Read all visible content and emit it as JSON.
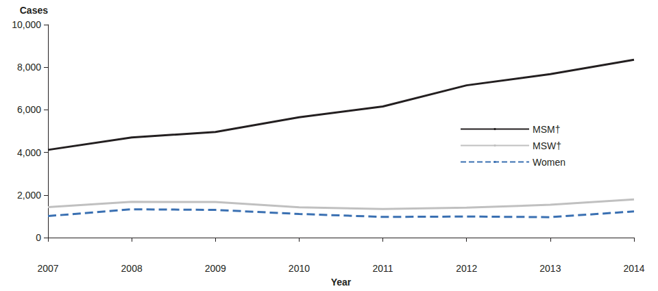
{
  "chart_data": {
    "type": "line",
    "x_label": "Year",
    "y_label": "Cases",
    "categories": [
      "2007",
      "2008",
      "2009",
      "2010",
      "2011",
      "2012",
      "2013",
      "2014"
    ],
    "series": [
      {
        "name": "MSM†",
        "color": "#231f20",
        "line_style": "solid",
        "marker": "none",
        "values": [
          4120,
          4700,
          4960,
          5650,
          6160,
          7150,
          7680,
          8350
        ]
      },
      {
        "name": "MSW†",
        "color": "#c0c0c0",
        "line_style": "solid",
        "marker": "none",
        "values": [
          1430,
          1680,
          1670,
          1420,
          1340,
          1410,
          1540,
          1790
        ]
      },
      {
        "name": "Women",
        "color": "#3a70b2",
        "line_style": "dashed",
        "marker": "none",
        "values": [
          1010,
          1330,
          1300,
          1110,
          970,
          990,
          960,
          1230
        ]
      }
    ],
    "ylim": [
      0,
      10000
    ],
    "yticks": [
      0,
      {
        "value": 2000,
        "label": "2,000"
      },
      {
        "value": 4000,
        "label": "4,000"
      },
      {
        "value": 6000,
        "label": "6,000"
      },
      {
        "value": 8000,
        "label": "8,000"
      },
      {
        "value": 10000,
        "label": "10,000"
      }
    ],
    "grid": false,
    "legend": "right"
  }
}
